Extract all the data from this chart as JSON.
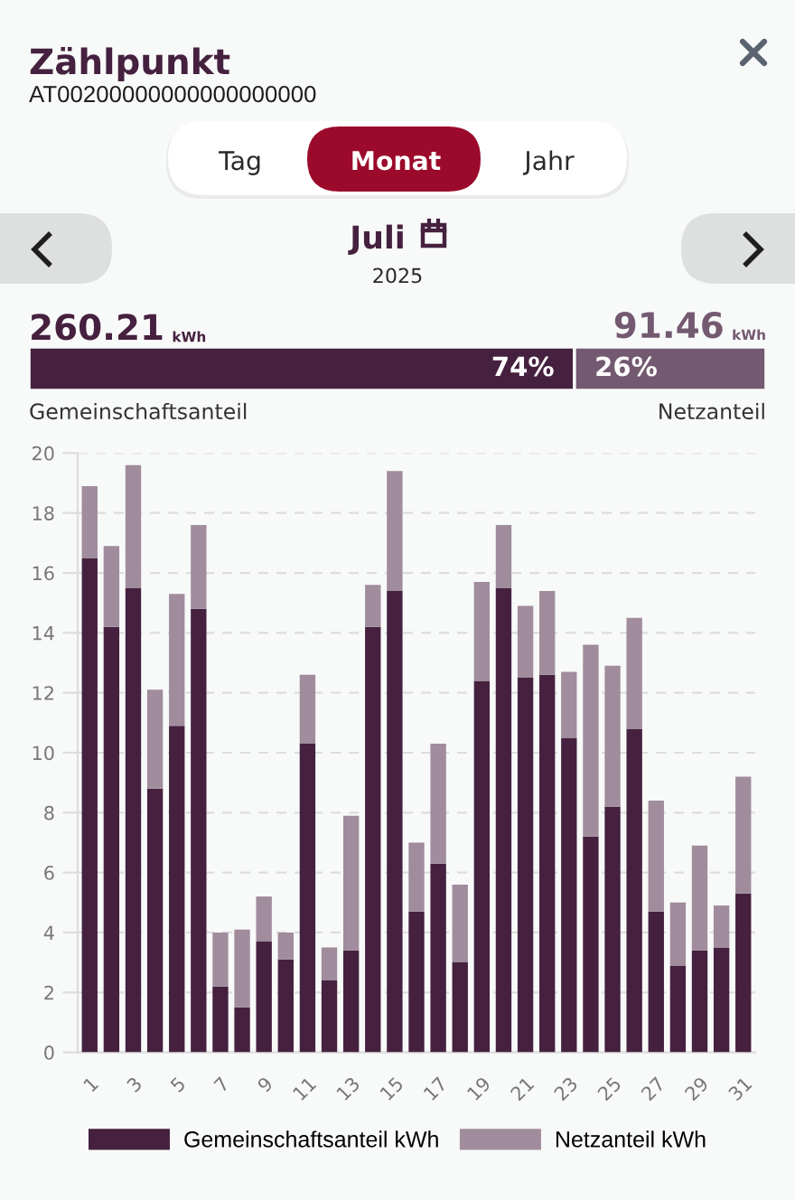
{
  "chart_data": [
    {
      "type": "bar",
      "orientation": "horizontal",
      "stacked": true,
      "title": "Zählpunkt",
      "subtitle": "AT00200000000000000000",
      "annotations": [
        "Tag",
        "Monat",
        "Jahr",
        "Juli",
        "2025",
        "260.21",
        "kWh",
        "91.46",
        "kWh"
      ],
      "series": [
        {
          "name": "Gemeinschaftsanteil",
          "color": "#45213f",
          "values": [
            74
          ],
          "value_labels": [
            "74%"
          ]
        },
        {
          "name": "Netzanteil",
          "color": "#735a70",
          "values": [
            26
          ],
          "value_labels": [
            "26%"
          ]
        }
      ],
      "xlim": [
        0,
        100
      ],
      "tick_labels": false
    },
    {
      "type": "bar",
      "stacked": true,
      "categories": [
        "1",
        null,
        "3",
        null,
        "5",
        null,
        "7",
        null,
        "9",
        null,
        "11",
        null,
        "13",
        null,
        "15",
        null,
        "17",
        null,
        "19",
        null,
        "21",
        null,
        "23",
        null,
        "25",
        null,
        "27",
        null,
        "29",
        null,
        "31"
      ],
      "series": [
        {
          "name": "Gemeinschaftsanteil kWh",
          "color": "#45213f",
          "values": [
            16.5,
            14.2,
            15.5,
            8.8,
            10.9,
            14.8,
            2.2,
            1.5,
            3.7,
            3.1,
            10.3,
            2.4,
            3.4,
            14.2,
            15.4,
            4.7,
            6.3,
            3.0,
            12.4,
            15.5,
            12.5,
            12.6,
            10.5,
            7.2,
            8.2,
            10.8,
            4.7,
            2.9,
            3.4,
            3.5,
            5.3
          ]
        },
        {
          "name": "Netzanteil kWh",
          "color": "#a08c9c",
          "values": [
            2.4,
            2.7,
            4.1,
            3.3,
            4.4,
            2.8,
            1.8,
            2.6,
            1.5,
            0.9,
            2.3,
            1.1,
            4.5,
            1.4,
            4.0,
            2.3,
            4.0,
            2.6,
            3.3,
            2.1,
            2.4,
            2.8,
            2.2,
            6.4,
            4.7,
            3.7,
            3.7,
            2.1,
            3.5,
            1.4,
            3.9
          ]
        }
      ],
      "ylim": [
        0,
        20
      ],
      "yticks": [
        0,
        2,
        4,
        6,
        8,
        10,
        12,
        14,
        16,
        18,
        20
      ],
      "grid": "y",
      "legend": "bottom"
    }
  ]
}
